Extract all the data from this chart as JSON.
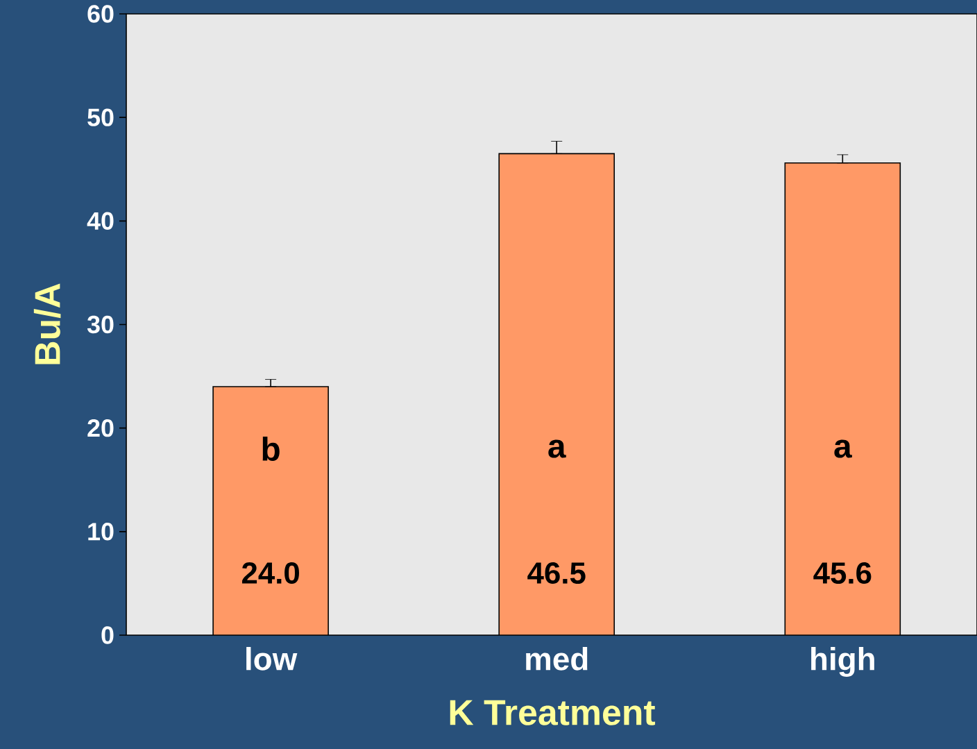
{
  "chart_data": {
    "type": "bar",
    "xlabel": "K Treatment",
    "ylabel": "Bu/A",
    "categories": [
      "low",
      "med",
      "high"
    ],
    "values": [
      24.0,
      46.5,
      45.6
    ],
    "value_labels": [
      "24.0",
      "46.5",
      "45.6"
    ],
    "errors": [
      [
        24.0,
        24.7
      ],
      [
        46.5,
        47.7
      ],
      [
        45.6,
        46.4
      ]
    ],
    "color": "#ff9966",
    "ylim": [
      0,
      60
    ],
    "yticks": [
      0,
      10,
      20,
      30,
      40,
      50,
      60
    ],
    "annotations": [
      "b",
      "a",
      "a"
    ]
  }
}
